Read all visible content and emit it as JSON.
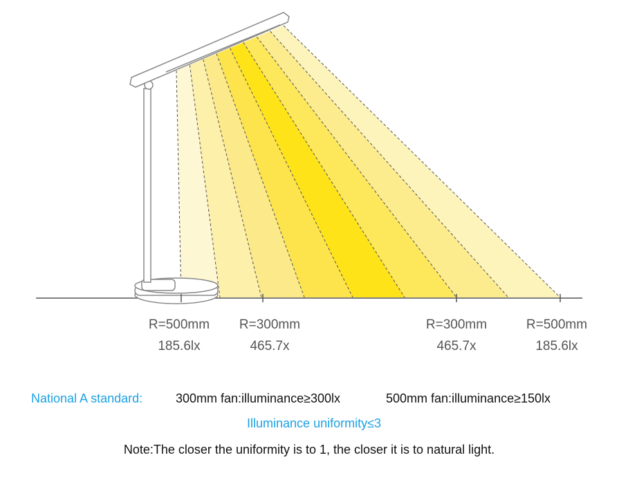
{
  "markers": [
    {
      "radius": "R=500mm",
      "illuminance": "185.6lx"
    },
    {
      "radius": "R=300mm",
      "illuminance": "465.7x"
    },
    {
      "radius": "R=300mm",
      "illuminance": "465.7x"
    },
    {
      "radius": "R=500mm",
      "illuminance": "185.6lx"
    }
  ],
  "standard": {
    "label": "National A standard:",
    "near": "300mm fan:illuminance≥300lx",
    "far": "500mm fan:illuminance≥150lx"
  },
  "uniformity": "Illuminance uniformity≤3",
  "note": "Note:The closer the uniformity is to 1, the closer it is to natural light."
}
